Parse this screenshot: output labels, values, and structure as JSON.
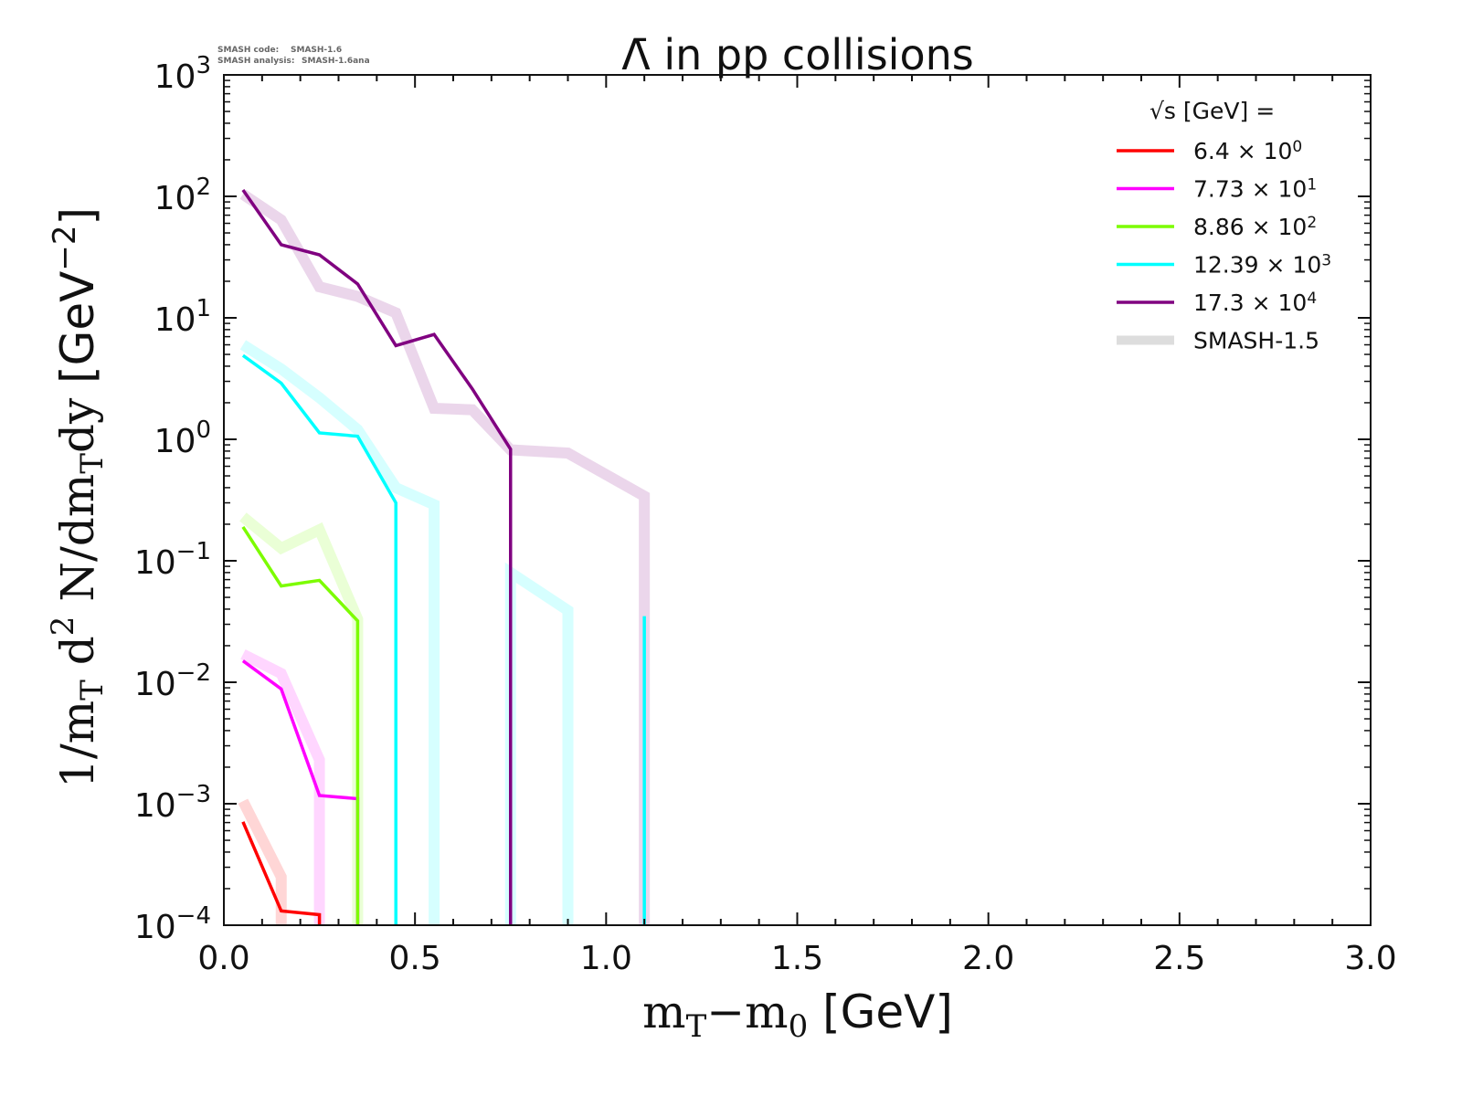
{
  "meta": {
    "code_label": "SMASH code:",
    "code_value": "SMASH-1.6",
    "analysis_label": "SMASH analysis:",
    "analysis_value": "SMASH-1.6ana"
  },
  "chart_data": {
    "type": "line",
    "title": "Λ̄ in pp collisions",
    "xlabel": "m_T−m_0 [GeV]",
    "xlabel_parts": {
      "m1": "m",
      "sub1": "T",
      "minus": "−m",
      "sub2": "0",
      "unit": " [GeV]"
    },
    "ylabel": "1/m_T d^2 N/dm_T dy [GeV^-2]",
    "ylabel_parts": {
      "a": "1/m",
      "sub_a": "T",
      "b": " d",
      "sup_b": "2",
      "c": " N/dm",
      "sub_c": "T",
      "d": "dy ",
      "unit": "[GeV",
      "unit_sup": "−2",
      "unit_end": "]"
    },
    "xlim": [
      0,
      3.0
    ],
    "ylim": [
      0.0001,
      1000
    ],
    "yscale": "log",
    "grid": false,
    "legend_placement": "top-right",
    "legend_title": "√s  [GeV] =",
    "x_ticks": [
      "0.0",
      "0.5",
      "1.0",
      "1.5",
      "2.0",
      "2.5",
      "3.0"
    ],
    "y_ticks": [
      {
        "base": "10",
        "exp": "3"
      },
      {
        "base": "10",
        "exp": "2"
      },
      {
        "base": "10",
        "exp": "1"
      },
      {
        "base": "10",
        "exp": "0"
      },
      {
        "base": "10",
        "exp": "−1"
      },
      {
        "base": "10",
        "exp": "−2"
      },
      {
        "base": "10",
        "exp": "−3"
      },
      {
        "base": "10",
        "exp": "−4"
      }
    ],
    "x": [
      0.05,
      0.15,
      0.25,
      0.35,
      0.45,
      0.55,
      0.65,
      0.75,
      0.9,
      1.1,
      1.3
    ],
    "series": [
      {
        "name": "6.4 × 10",
        "name_sup": "0",
        "color": "#ff0000",
        "values": [
          0.00071,
          0.000131,
          0.000122,
          0,
          0,
          0,
          0,
          0,
          0,
          0,
          0
        ],
        "reference": [
          0.00105,
          0.00025,
          0,
          0,
          0,
          0,
          0,
          0,
          0,
          0,
          0
        ]
      },
      {
        "name": "7.73 × 10",
        "name_sup": "1",
        "color": "#ff00ff",
        "values": [
          0.015,
          0.0088,
          0.00117,
          0.0011,
          0,
          0,
          0,
          0,
          0,
          0,
          0
        ],
        "reference": [
          0.017,
          0.0118,
          0.0023,
          0,
          0,
          0,
          0,
          0,
          0,
          0,
          0
        ]
      },
      {
        "name": "8.86 × 10",
        "name_sup": "2",
        "color": "#7cfc00",
        "values": [
          0.19,
          0.062,
          0.069,
          0.032,
          0,
          0,
          0,
          0,
          0,
          0,
          0
        ],
        "reference": [
          0.23,
          0.127,
          0.18,
          0.033,
          0,
          0,
          0,
          0,
          0,
          0,
          0
        ]
      },
      {
        "name": "12.39 × 10",
        "name_sup": "3",
        "color": "#00ffff",
        "values": [
          4.9,
          2.9,
          1.13,
          1.06,
          0.3,
          0,
          0,
          0,
          0,
          0.035,
          0
        ],
        "reference": [
          6.0,
          3.8,
          2.2,
          1.2,
          0.4,
          0.29,
          0,
          0.08,
          0.039,
          0,
          0
        ]
      },
      {
        "name": "17.3 × 10",
        "name_sup": "4",
        "color": "#800080",
        "values": [
          113,
          40,
          33,
          19,
          5.9,
          7.3,
          2.6,
          0.83,
          0,
          0,
          0
        ],
        "reference": [
          104,
          64,
          18,
          15,
          11,
          1.8,
          1.75,
          0.82,
          0.77,
          0.34,
          0
        ]
      }
    ],
    "reference_label": "SMASH-1.5",
    "reference_color": "#dddddd"
  }
}
